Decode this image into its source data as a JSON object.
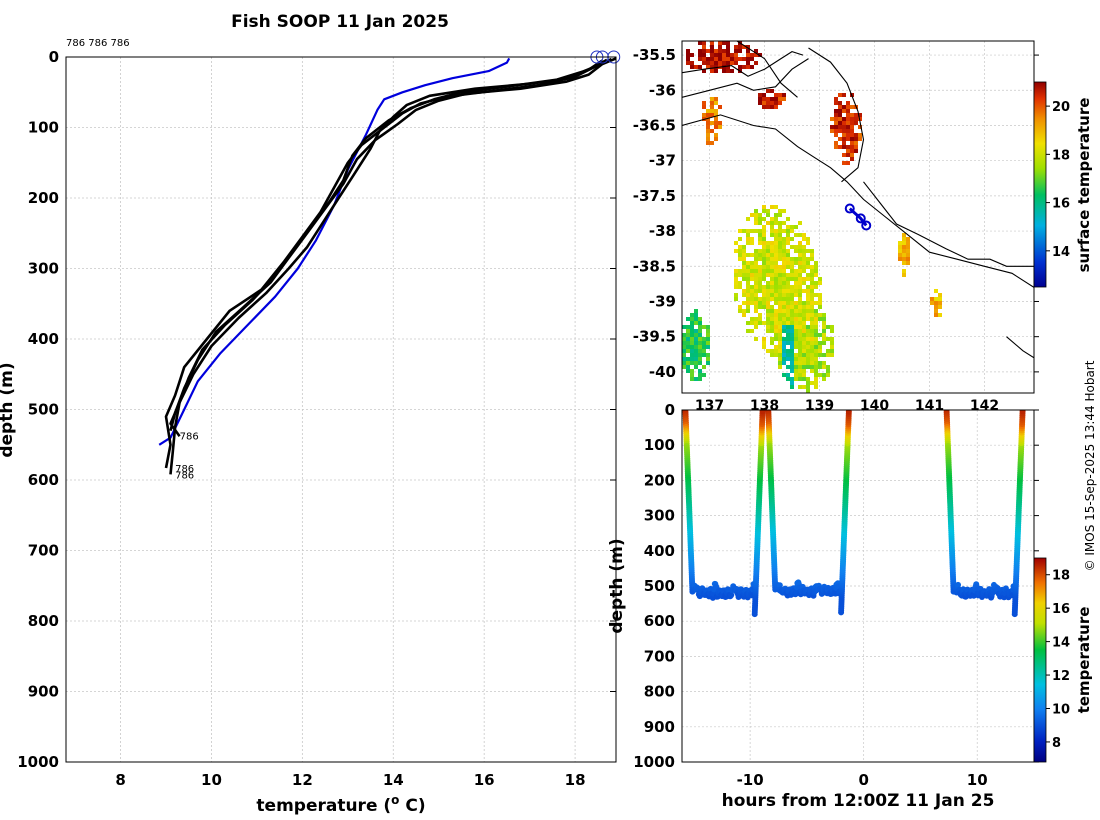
{
  "title": "Fish SOOP 11 Jan 2025",
  "credit": "© IMOS 15-Sep-2025 13:44 Hobart",
  "top_labels": "786 786 786",
  "colors": {
    "profile": "#000000",
    "climatology": "#0000dd",
    "track": "#0000cc",
    "grid": "#c8c8c8",
    "coast": "#000000"
  },
  "chart_data": [
    {
      "type": "line",
      "name": "profile-panel",
      "xlabel": "temperature (",
      "xlabel_sup": "o",
      "xlabel_unit": " C)",
      "ylabel": "depth (m)",
      "xlim": [
        6.8,
        18.9
      ],
      "ylim": [
        0,
        1000
      ],
      "x_ticks": [
        8,
        10,
        12,
        14,
        16,
        18
      ],
      "y_ticks": [
        0,
        100,
        200,
        300,
        400,
        500,
        600,
        700,
        800,
        900,
        1000
      ],
      "labels": [
        {
          "text": "786",
          "t": 9.3,
          "d": 537
        },
        {
          "text": "786",
          "t": 9.2,
          "d": 583
        },
        {
          "text": "786",
          "t": 9.2,
          "d": 592
        }
      ],
      "series": [
        {
          "name": "climatology",
          "color": "#0000dd",
          "points": [
            [
              16.55,
              2
            ],
            [
              16.5,
              8
            ],
            [
              16.1,
              20
            ],
            [
              15.3,
              30
            ],
            [
              14.7,
              40
            ],
            [
              14.2,
              50
            ],
            [
              13.8,
              60
            ],
            [
              13.65,
              75
            ],
            [
              13.4,
              110
            ],
            [
              13.0,
              160
            ],
            [
              12.7,
              210
            ],
            [
              12.3,
              260
            ],
            [
              11.9,
              300
            ],
            [
              11.4,
              340
            ],
            [
              10.8,
              380
            ],
            [
              10.2,
              420
            ],
            [
              9.7,
              460
            ],
            [
              9.4,
              500
            ],
            [
              9.1,
              540
            ],
            [
              8.85,
              550
            ]
          ]
        },
        {
          "name": "cast-1",
          "color": "#000000",
          "points": [
            [
              18.8,
              3
            ],
            [
              18.5,
              12
            ],
            [
              18.2,
              20
            ],
            [
              17.9,
              30
            ],
            [
              17.0,
              38
            ],
            [
              15.8,
              45
            ],
            [
              14.8,
              55
            ],
            [
              14.3,
              68
            ],
            [
              14.0,
              85
            ],
            [
              13.7,
              105
            ],
            [
              13.5,
              130
            ],
            [
              13.1,
              170
            ],
            [
              12.8,
              200
            ],
            [
              12.5,
              230
            ],
            [
              12.1,
              270
            ],
            [
              11.7,
              300
            ],
            [
              11.2,
              335
            ],
            [
              10.6,
              370
            ],
            [
              10.0,
              410
            ],
            [
              9.6,
              450
            ],
            [
              9.3,
              490
            ],
            [
              9.1,
              520
            ],
            [
              9.3,
              538
            ]
          ]
        },
        {
          "name": "cast-2",
          "color": "#000000",
          "points": [
            [
              18.7,
              4
            ],
            [
              18.4,
              15
            ],
            [
              18.0,
              28
            ],
            [
              17.2,
              40
            ],
            [
              16.2,
              48
            ],
            [
              15.2,
              56
            ],
            [
              14.6,
              66
            ],
            [
              14.2,
              80
            ],
            [
              13.8,
              100
            ],
            [
              13.3,
              125
            ],
            [
              13.0,
              150
            ],
            [
              12.7,
              185
            ],
            [
              12.4,
              220
            ],
            [
              12.0,
              255
            ],
            [
              11.6,
              290
            ],
            [
              11.1,
              330
            ],
            [
              10.4,
              360
            ],
            [
              9.9,
              400
            ],
            [
              9.4,
              440
            ],
            [
              9.2,
              480
            ],
            [
              9.0,
              510
            ],
            [
              9.1,
              550
            ],
            [
              9.0,
              583
            ]
          ]
        },
        {
          "name": "cast-3",
          "color": "#000000",
          "points": [
            [
              18.6,
              5
            ],
            [
              18.3,
              18
            ],
            [
              17.6,
              32
            ],
            [
              16.5,
              42
            ],
            [
              15.5,
              50
            ],
            [
              14.9,
              60
            ],
            [
              14.4,
              72
            ],
            [
              13.9,
              90
            ],
            [
              13.4,
              115
            ],
            [
              13.1,
              140
            ],
            [
              12.9,
              175
            ],
            [
              12.6,
              205
            ],
            [
              12.2,
              240
            ],
            [
              11.8,
              275
            ],
            [
              11.4,
              310
            ],
            [
              10.9,
              345
            ],
            [
              10.3,
              380
            ],
            [
              9.8,
              415
            ],
            [
              9.5,
              455
            ],
            [
              9.3,
              490
            ],
            [
              9.2,
              525
            ],
            [
              9.15,
              560
            ],
            [
              9.1,
              592
            ]
          ]
        },
        {
          "name": "cast-4",
          "color": "#000000",
          "points": [
            [
              18.9,
              2
            ],
            [
              18.6,
              10
            ],
            [
              18.3,
              25
            ],
            [
              17.8,
              35
            ],
            [
              16.8,
              45
            ],
            [
              15.6,
              52
            ],
            [
              15.0,
              62
            ],
            [
              14.5,
              75
            ],
            [
              14.1,
              95
            ],
            [
              13.6,
              118
            ],
            [
              13.2,
              145
            ],
            [
              12.9,
              180
            ],
            [
              12.5,
              215
            ],
            [
              12.1,
              250
            ],
            [
              11.7,
              285
            ],
            [
              11.3,
              320
            ],
            [
              10.7,
              355
            ],
            [
              10.1,
              390
            ],
            [
              9.7,
              430
            ],
            [
              9.4,
              470
            ],
            [
              9.2,
              505
            ],
            [
              9.1,
              530
            ]
          ]
        }
      ]
    },
    {
      "type": "heatmap",
      "name": "sst-map",
      "colorbar_label": "surface temperature",
      "xlim": [
        136.5,
        142.9
      ],
      "ylim": [
        -40.3,
        -35.3
      ],
      "lon_ticks": [
        "137",
        "138",
        "139",
        "140",
        "141",
        "142"
      ],
      "lat_ticks": [
        "-35.5",
        "-36",
        "-36.5",
        "-37",
        "-37.5",
        "-38",
        "-38.5",
        "-39",
        "-39.5",
        "-40"
      ],
      "clim": [
        12.5,
        21
      ],
      "colorbar_ticks": [
        14,
        16,
        18,
        20
      ],
      "track": [
        [
          139.55,
          -37.68
        ],
        [
          139.75,
          -37.82
        ],
        [
          139.85,
          -37.92
        ]
      ]
    },
    {
      "type": "scatter",
      "name": "depth-time",
      "xlabel": "hours from 12:00Z 11 Jan 25",
      "ylabel": "depth (m)",
      "colorbar_label": "temperature",
      "xlim": [
        -16,
        15
      ],
      "ylim": [
        0,
        1000
      ],
      "x_ticks": [
        -10,
        0,
        10
      ],
      "y_ticks": [
        0,
        100,
        200,
        300,
        400,
        500,
        600,
        700,
        800,
        900,
        1000
      ],
      "clim": [
        6.8,
        19
      ],
      "colorbar_ticks": [
        8,
        10,
        12,
        14,
        16,
        18
      ],
      "casts": [
        {
          "down": -15.7,
          "up": -8.9,
          "bottom": 520
        },
        {
          "down": -8.4,
          "up": -1.3,
          "bottom": 515
        },
        {
          "down": 7.3,
          "up": 14.0,
          "bottom": 520
        }
      ]
    }
  ]
}
